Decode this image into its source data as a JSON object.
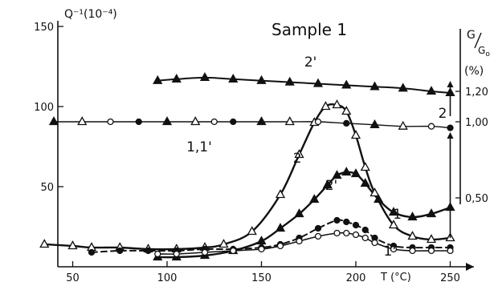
{
  "chart_data": {
    "type": "line",
    "title": "Sample 1",
    "xlabel": "T (°C)",
    "ylabel_left": "Q⁻¹(10⁻⁴)",
    "ylabel_right": "G/G₀ (%)",
    "xlim": [
      20,
      260
    ],
    "ylim": [
      0,
      155
    ],
    "x_ticks": [
      50,
      100,
      150,
      200,
      250
    ],
    "y_ticks": [
      50,
      100,
      150
    ],
    "right_axis": {
      "ticks": [
        {
          "label": "1,20",
          "value": 1.2
        },
        {
          "label": "1,00",
          "value": 1.0
        },
        {
          "label": "0,50",
          "value": 0.5
        }
      ],
      "map": {
        "value_a": 1.0,
        "y_a": 90.5,
        "value_b": 1.2,
        "y_b": 109.5
      }
    },
    "series": [
      {
        "name": "2",
        "marker": "triangle-open",
        "line": "solid",
        "width": 2.4,
        "x": [
          35,
          50,
          60,
          75,
          90,
          105,
          120,
          130,
          145,
          160,
          170,
          178,
          184,
          190,
          195,
          200,
          205,
          210,
          220,
          230,
          240,
          250
        ],
        "y": [
          14,
          13,
          12,
          12,
          11,
          11,
          12,
          14,
          22,
          45,
          70,
          90,
          100,
          101,
          97,
          82,
          62,
          46,
          26,
          19,
          17,
          18
        ]
      },
      {
        "name": "2'",
        "marker": "triangle-filled",
        "line": "solid",
        "width": 2.4,
        "x": [
          95,
          105,
          120,
          135,
          150,
          160,
          170,
          178,
          185,
          190,
          195,
          200,
          205,
          212,
          220,
          230,
          240,
          250
        ],
        "y": [
          6,
          6,
          7,
          10,
          16,
          24,
          33,
          42,
          51,
          57,
          59,
          58,
          52,
          42,
          34,
          31,
          33,
          37
        ]
      },
      {
        "name": "1",
        "marker": "circle-filled",
        "line": "dashed",
        "width": 2.0,
        "x": [
          60,
          75,
          90,
          105,
          120,
          135,
          150,
          160,
          170,
          180,
          190,
          195,
          200,
          205,
          210,
          220,
          230,
          240,
          250
        ],
        "y": [
          9,
          10,
          10,
          10,
          11,
          11,
          12,
          14,
          18,
          24,
          29,
          28,
          26,
          23,
          18,
          13,
          12,
          12,
          12
        ]
      },
      {
        "name": "1'",
        "marker": "circle-open",
        "line": "solid",
        "width": 1.6,
        "x": [
          95,
          105,
          120,
          135,
          150,
          160,
          170,
          180,
          190,
          195,
          200,
          205,
          210,
          220,
          230,
          240,
          250
        ],
        "y": [
          8,
          8,
          9,
          10,
          11,
          13,
          16,
          19,
          21,
          21,
          20,
          18,
          15,
          11,
          10,
          10,
          10
        ]
      },
      {
        "name": "1,1'",
        "marker": "mixed",
        "line": "solid",
        "width": 1.4,
        "axis": "right",
        "x": [
          40,
          55,
          70,
          85,
          100,
          115,
          125,
          135,
          150,
          165,
          180,
          195,
          210,
          225,
          240,
          250
        ],
        "y": [
          1.0,
          1.0,
          1.0,
          1.0,
          1.0,
          1.0,
          1.0,
          1.0,
          1.0,
          1.0,
          1.0,
          0.99,
          0.98,
          0.97,
          0.97,
          0.96
        ]
      },
      {
        "name": "2'",
        "marker": "triangle-filled",
        "line": "solid",
        "width": 2.0,
        "axis": "right",
        "x": [
          95,
          105,
          120,
          135,
          150,
          165,
          180,
          195,
          210,
          225,
          240,
          250
        ],
        "y": [
          1.27,
          1.28,
          1.29,
          1.28,
          1.27,
          1.26,
          1.25,
          1.24,
          1.23,
          1.22,
          1.2,
          1.19
        ]
      }
    ],
    "annotations": [
      {
        "text": "2",
        "x": 169,
        "y": 65
      },
      {
        "text": "2'",
        "x": 187,
        "y": 48
      },
      {
        "text": "1",
        "x": 222,
        "y": 30
      },
      {
        "text": "1'",
        "x": 218,
        "y": 7
      },
      {
        "text": "2",
        "x": 246,
        "y": 93
      },
      {
        "text": "1,1'",
        "x": 117,
        "y": 72
      },
      {
        "text": "2'",
        "x": 176,
        "y": 125
      }
    ],
    "arrows": [
      {
        "x": 250,
        "from": 37,
        "to": 84
      },
      {
        "x": 250,
        "from": 18,
        "to": 40
      },
      {
        "x": 250,
        "from": 94,
        "to": 116
      }
    ]
  }
}
